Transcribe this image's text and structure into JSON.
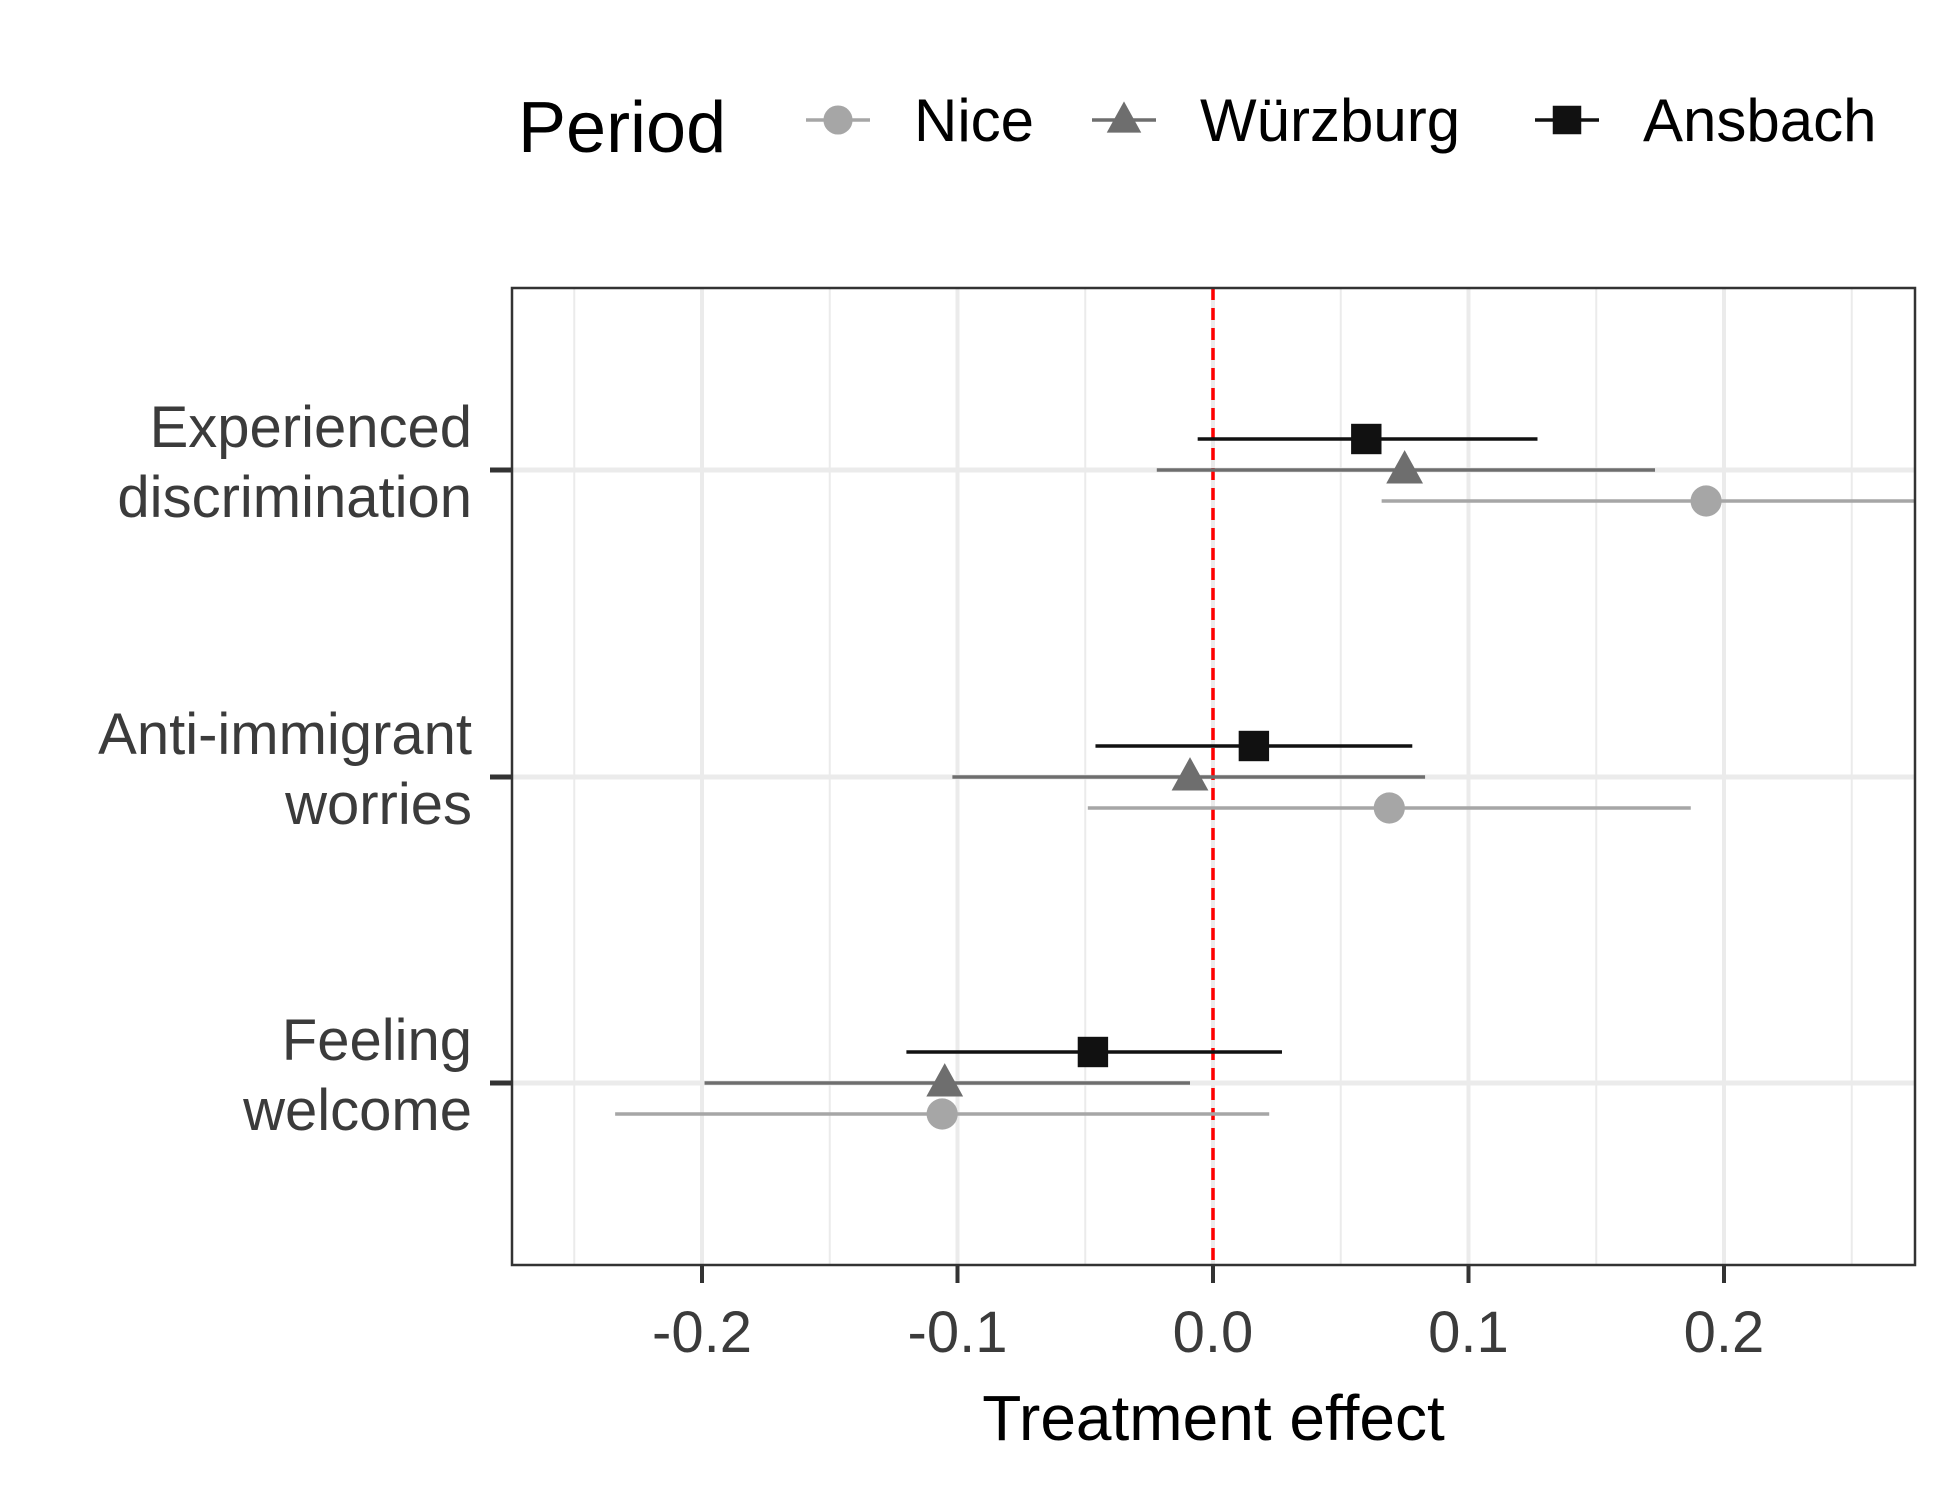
{
  "chart_data": {
    "type": "dot-whisker",
    "xlabel": "Treatment effect",
    "ylabel": "",
    "xlim": [
      -0.275,
      0.275
    ],
    "xticks": [
      -0.2,
      -0.1,
      0.0,
      0.1,
      0.2
    ],
    "xtick_labels": [
      "-0.2",
      "-0.1",
      "0.0",
      "0.1",
      "0.2"
    ],
    "reference_line": {
      "x": 0,
      "color": "#ff0000",
      "style": "dashed"
    },
    "grid": true,
    "legend": {
      "title": "Period",
      "placement": "top",
      "entries": [
        "Nice",
        "Würzburg",
        "Ansbach"
      ]
    },
    "categories": [
      {
        "lines": [
          "Experienced",
          "discrimination"
        ]
      },
      {
        "lines": [
          "Anti-immigrant",
          "worries"
        ]
      },
      {
        "lines": [
          "Feeling",
          "welcome"
        ]
      }
    ],
    "series": [
      {
        "name": "Nice",
        "marker": "circle",
        "color": "#a6a6a6",
        "points": [
          {
            "estimate": 0.193,
            "lower": 0.066,
            "upper": 0.32
          },
          {
            "estimate": 0.069,
            "lower": -0.049,
            "upper": 0.187
          },
          {
            "estimate": -0.106,
            "lower": -0.234,
            "upper": 0.022
          }
        ]
      },
      {
        "name": "Würzburg",
        "marker": "triangle",
        "color": "#6e6e6e",
        "points": [
          {
            "estimate": 0.075,
            "lower": -0.022,
            "upper": 0.173
          },
          {
            "estimate": -0.009,
            "lower": -0.102,
            "upper": 0.083
          },
          {
            "estimate": -0.105,
            "lower": -0.199,
            "upper": -0.009
          }
        ]
      },
      {
        "name": "Ansbach",
        "marker": "square",
        "color": "#111111",
        "points": [
          {
            "estimate": 0.06,
            "lower": -0.006,
            "upper": 0.127
          },
          {
            "estimate": 0.016,
            "lower": -0.046,
            "upper": 0.078
          },
          {
            "estimate": -0.047,
            "lower": -0.12,
            "upper": 0.027
          }
        ]
      }
    ]
  }
}
